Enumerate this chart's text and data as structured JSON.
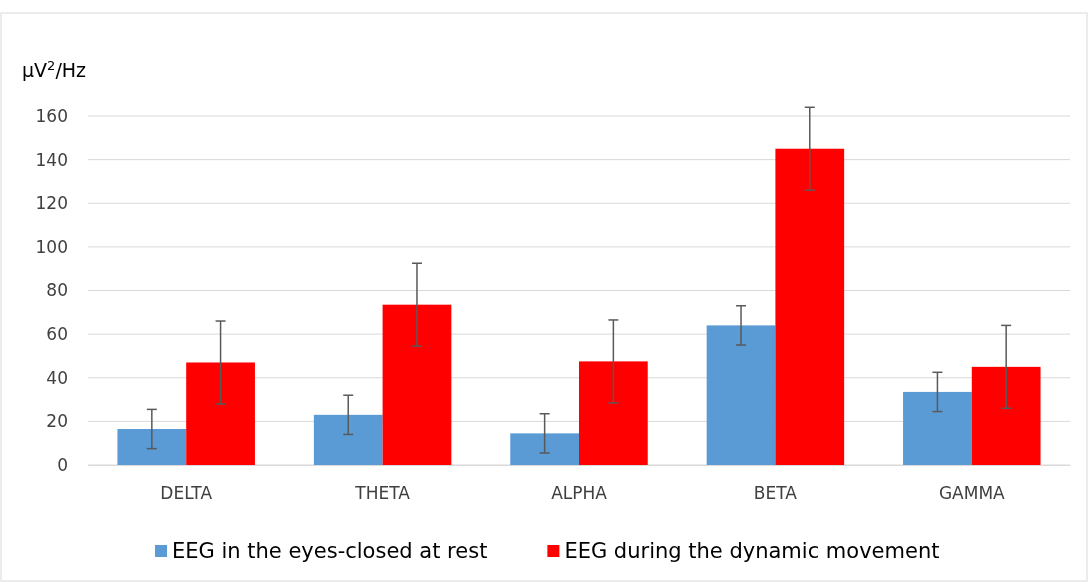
{
  "chart_data": {
    "type": "bar",
    "ylabel": "μV$^{2}$/Hz",
    "categories": [
      "DELTA",
      "THETA",
      "ALPHA",
      "BETA",
      "GAMMA"
    ],
    "series": [
      {
        "name": "EEG in the eyes-closed at rest",
        "color": "#5b9bd5",
        "values": [
          16.5,
          23,
          14.5,
          64,
          33.5
        ],
        "errors": [
          9,
          9,
          9,
          9,
          9
        ]
      },
      {
        "name": "EEG during the dynamic movement",
        "color": "#ff0000",
        "values": [
          47,
          73.5,
          47.5,
          145,
          45
        ],
        "errors": [
          19,
          19,
          19,
          19,
          19
        ]
      }
    ],
    "ylim": [
      0,
      160
    ],
    "yticks": [
      0,
      20,
      40,
      60,
      80,
      100,
      120,
      140,
      160
    ],
    "grid": "y",
    "legend": "bottom"
  }
}
